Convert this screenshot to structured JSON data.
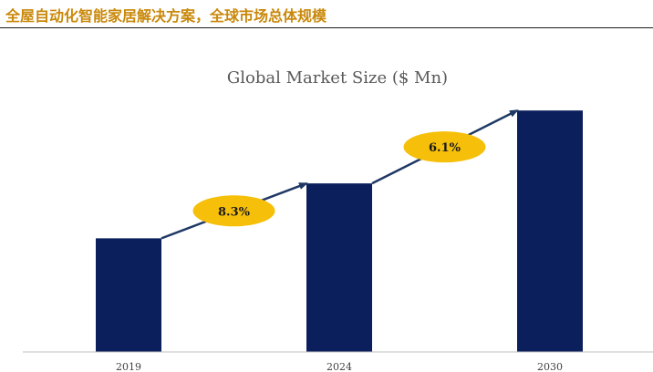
{
  "header": {
    "title": "全屋自动化智能家居解决方案，全球市场总体规模"
  },
  "chart_data": {
    "type": "bar",
    "title": "Global Market Size ($ Mn)",
    "categories": [
      "2019",
      "2024",
      "2030"
    ],
    "values": [
      120,
      178,
      255
    ],
    "ylim": [
      0,
      260
    ],
    "xlabel": "",
    "ylabel": "",
    "grid": false,
    "bar_color": "#0b1f5c",
    "growth_annotations": [
      {
        "from": "2019",
        "to": "2024",
        "label": "8.3%"
      },
      {
        "from": "2024",
        "to": "2030",
        "label": "6.1%"
      }
    ],
    "annotation_color": "#f5bf0a",
    "arrow_color": "#1f3864"
  }
}
